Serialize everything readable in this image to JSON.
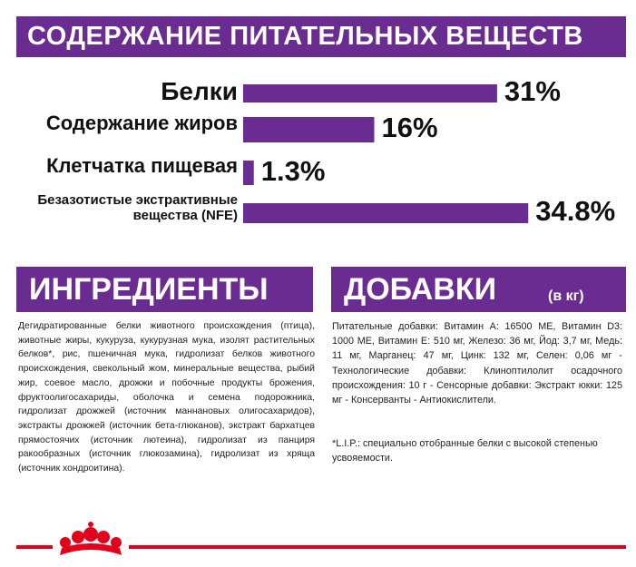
{
  "chart_data": {
    "type": "bar",
    "orientation": "horizontal",
    "title": "СОДЕРЖАНИЕ ПИТАТЕЛЬНЫХ ВЕЩЕСТВ",
    "categories": [
      "Белки",
      "Содержание жиров",
      "Клетчатка пищевая",
      "Безазотистые экстрактивные вещества (NFE)"
    ],
    "values": [
      31,
      16,
      1.3,
      34.8
    ],
    "value_labels": [
      "31%",
      "16%",
      "1.3%",
      "34.8%"
    ],
    "color": "#6b2c91"
  },
  "ingredients": {
    "title": "ИНГРЕДИЕНТЫ",
    "text": "Дегидратированные белки животного происхождения (птица), животные жиры, кукуруза, кукурузная мука, изолят растительных белков*, рис, пшеничная мука, гидролизат белков животного происхождения, свекольный жом, минеральные вещества, рыбий жир, соевое масло, дрожжи и побочные продукты брожения, фруктоолигосахариды, оболочка и семена подорожника, гидролизат дрожжей (источник маннановых олигосахаридов), экстракты дрожжей (источник бета-глюканов), экстракт бархатцев прямостоячих (источник лютеина), гидролизат из панциря ракообразных (источник глюкозамина), гидролизат из хряща (источник хондроитина)."
  },
  "additives": {
    "title": "ДОБАВКИ",
    "unit": "(в кг)",
    "text": "Питательные добавки: Витамин А: 16500 МЕ, Витамин D3: 1000 МЕ, Витамин Е: 510 мг, Железо: 36 мг, Йод: 3,7 мг, Медь: 11 мг, Марганец: 47 мг, Цинк: 132 мг, Селен: 0,06 мг - Технологические добавки: Клиноптилолит осадочного происхождения: 10 г - Сенсорные добавки: Экстракт юкки: 125 мг - Консерванты - Антиокислители.",
    "note": "*L.I.P.: специально отобранные белки с высокой степенью усвояемости."
  }
}
